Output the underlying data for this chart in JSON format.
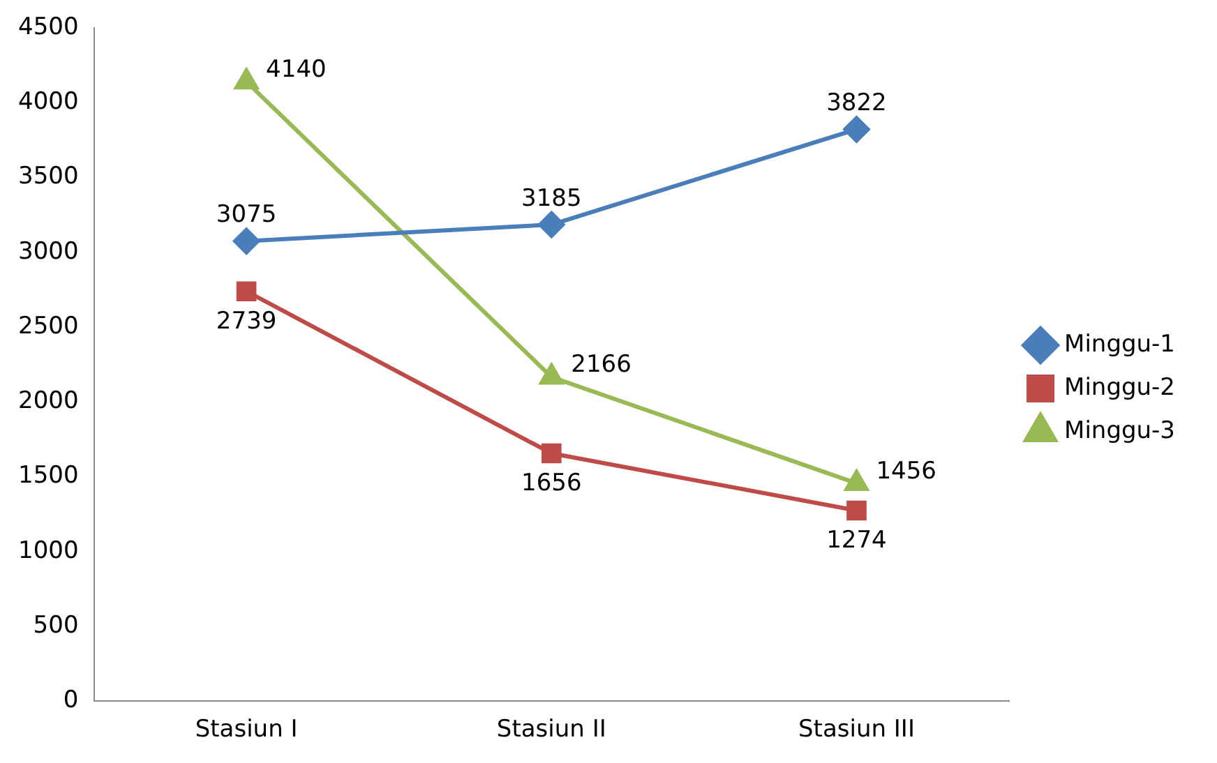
{
  "chart_data": {
    "type": "line",
    "categories": [
      "Stasiun I",
      "Stasiun II",
      "Stasiun III"
    ],
    "series": [
      {
        "name": "Minggu-1",
        "color": "#4a7ebb",
        "marker": "diamond",
        "values": [
          3075,
          3185,
          3822
        ]
      },
      {
        "name": "Minggu-2",
        "color": "#be4b48",
        "marker": "square",
        "values": [
          2739,
          1656,
          1274
        ]
      },
      {
        "name": "Minggu-3",
        "color": "#98b954",
        "marker": "triangle",
        "values": [
          4140,
          2166,
          1456
        ]
      }
    ],
    "ylim": [
      0,
      4500
    ],
    "yticks": [
      0,
      500,
      1000,
      1500,
      2000,
      2500,
      3000,
      3500,
      4000,
      4500
    ],
    "grid": false,
    "legend": "right",
    "data_labels": true,
    "line_style": "solid"
  }
}
